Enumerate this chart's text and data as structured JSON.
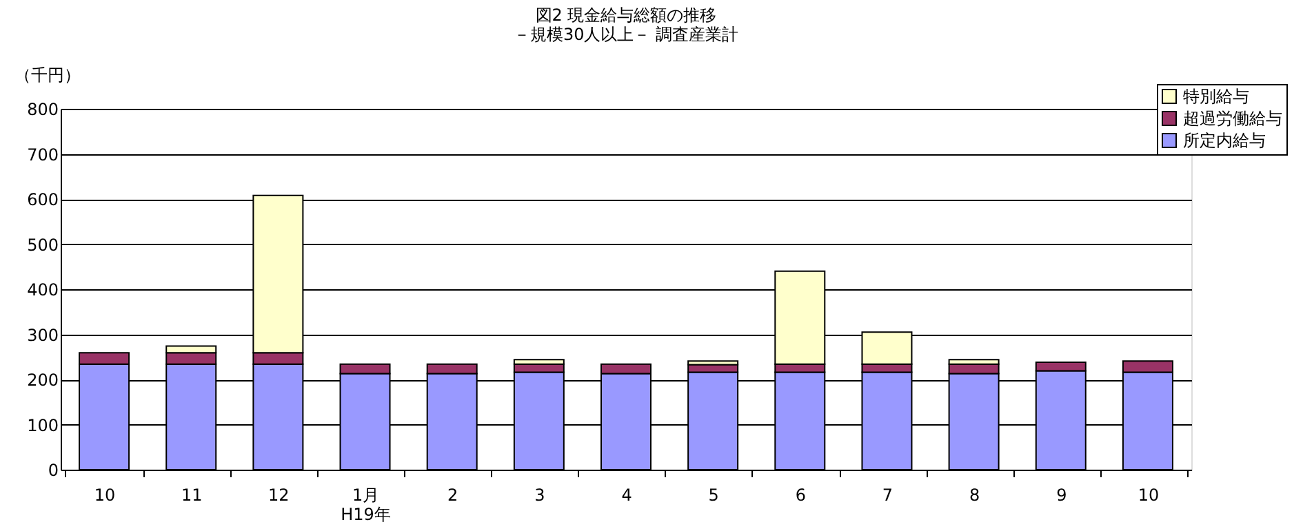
{
  "chart_data": {
    "type": "bar",
    "stacked": true,
    "title": [
      "図2  現金給与総額の推移",
      "－規模30人以上－  調査産業計"
    ],
    "ylabel": "（千円）",
    "categories": [
      "10",
      "11",
      "12",
      "1月\nH19年",
      "2",
      "3",
      "4",
      "5",
      "6",
      "7",
      "8",
      "9",
      "10"
    ],
    "series": [
      {
        "name": "所定内給与",
        "color": "#9999ff",
        "values": [
          234,
          234,
          234,
          213,
          213,
          216,
          213,
          216,
          216,
          216,
          213,
          219,
          216
        ]
      },
      {
        "name": "超過労働給与",
        "color": "#993366",
        "values": [
          25,
          25,
          25,
          21,
          21,
          18,
          21,
          17,
          18,
          18,
          21,
          19,
          25
        ]
      },
      {
        "name": "特別給与",
        "color": "#ffffcc",
        "values": [
          0,
          15,
          349,
          0,
          0,
          10,
          0,
          8,
          206,
          71,
          10,
          0,
          0
        ]
      }
    ],
    "ylim": [
      0,
      800
    ],
    "yticks": [
      0,
      100,
      200,
      300,
      400,
      500,
      600,
      700,
      800
    ],
    "grid": "y",
    "legend": "top right"
  }
}
